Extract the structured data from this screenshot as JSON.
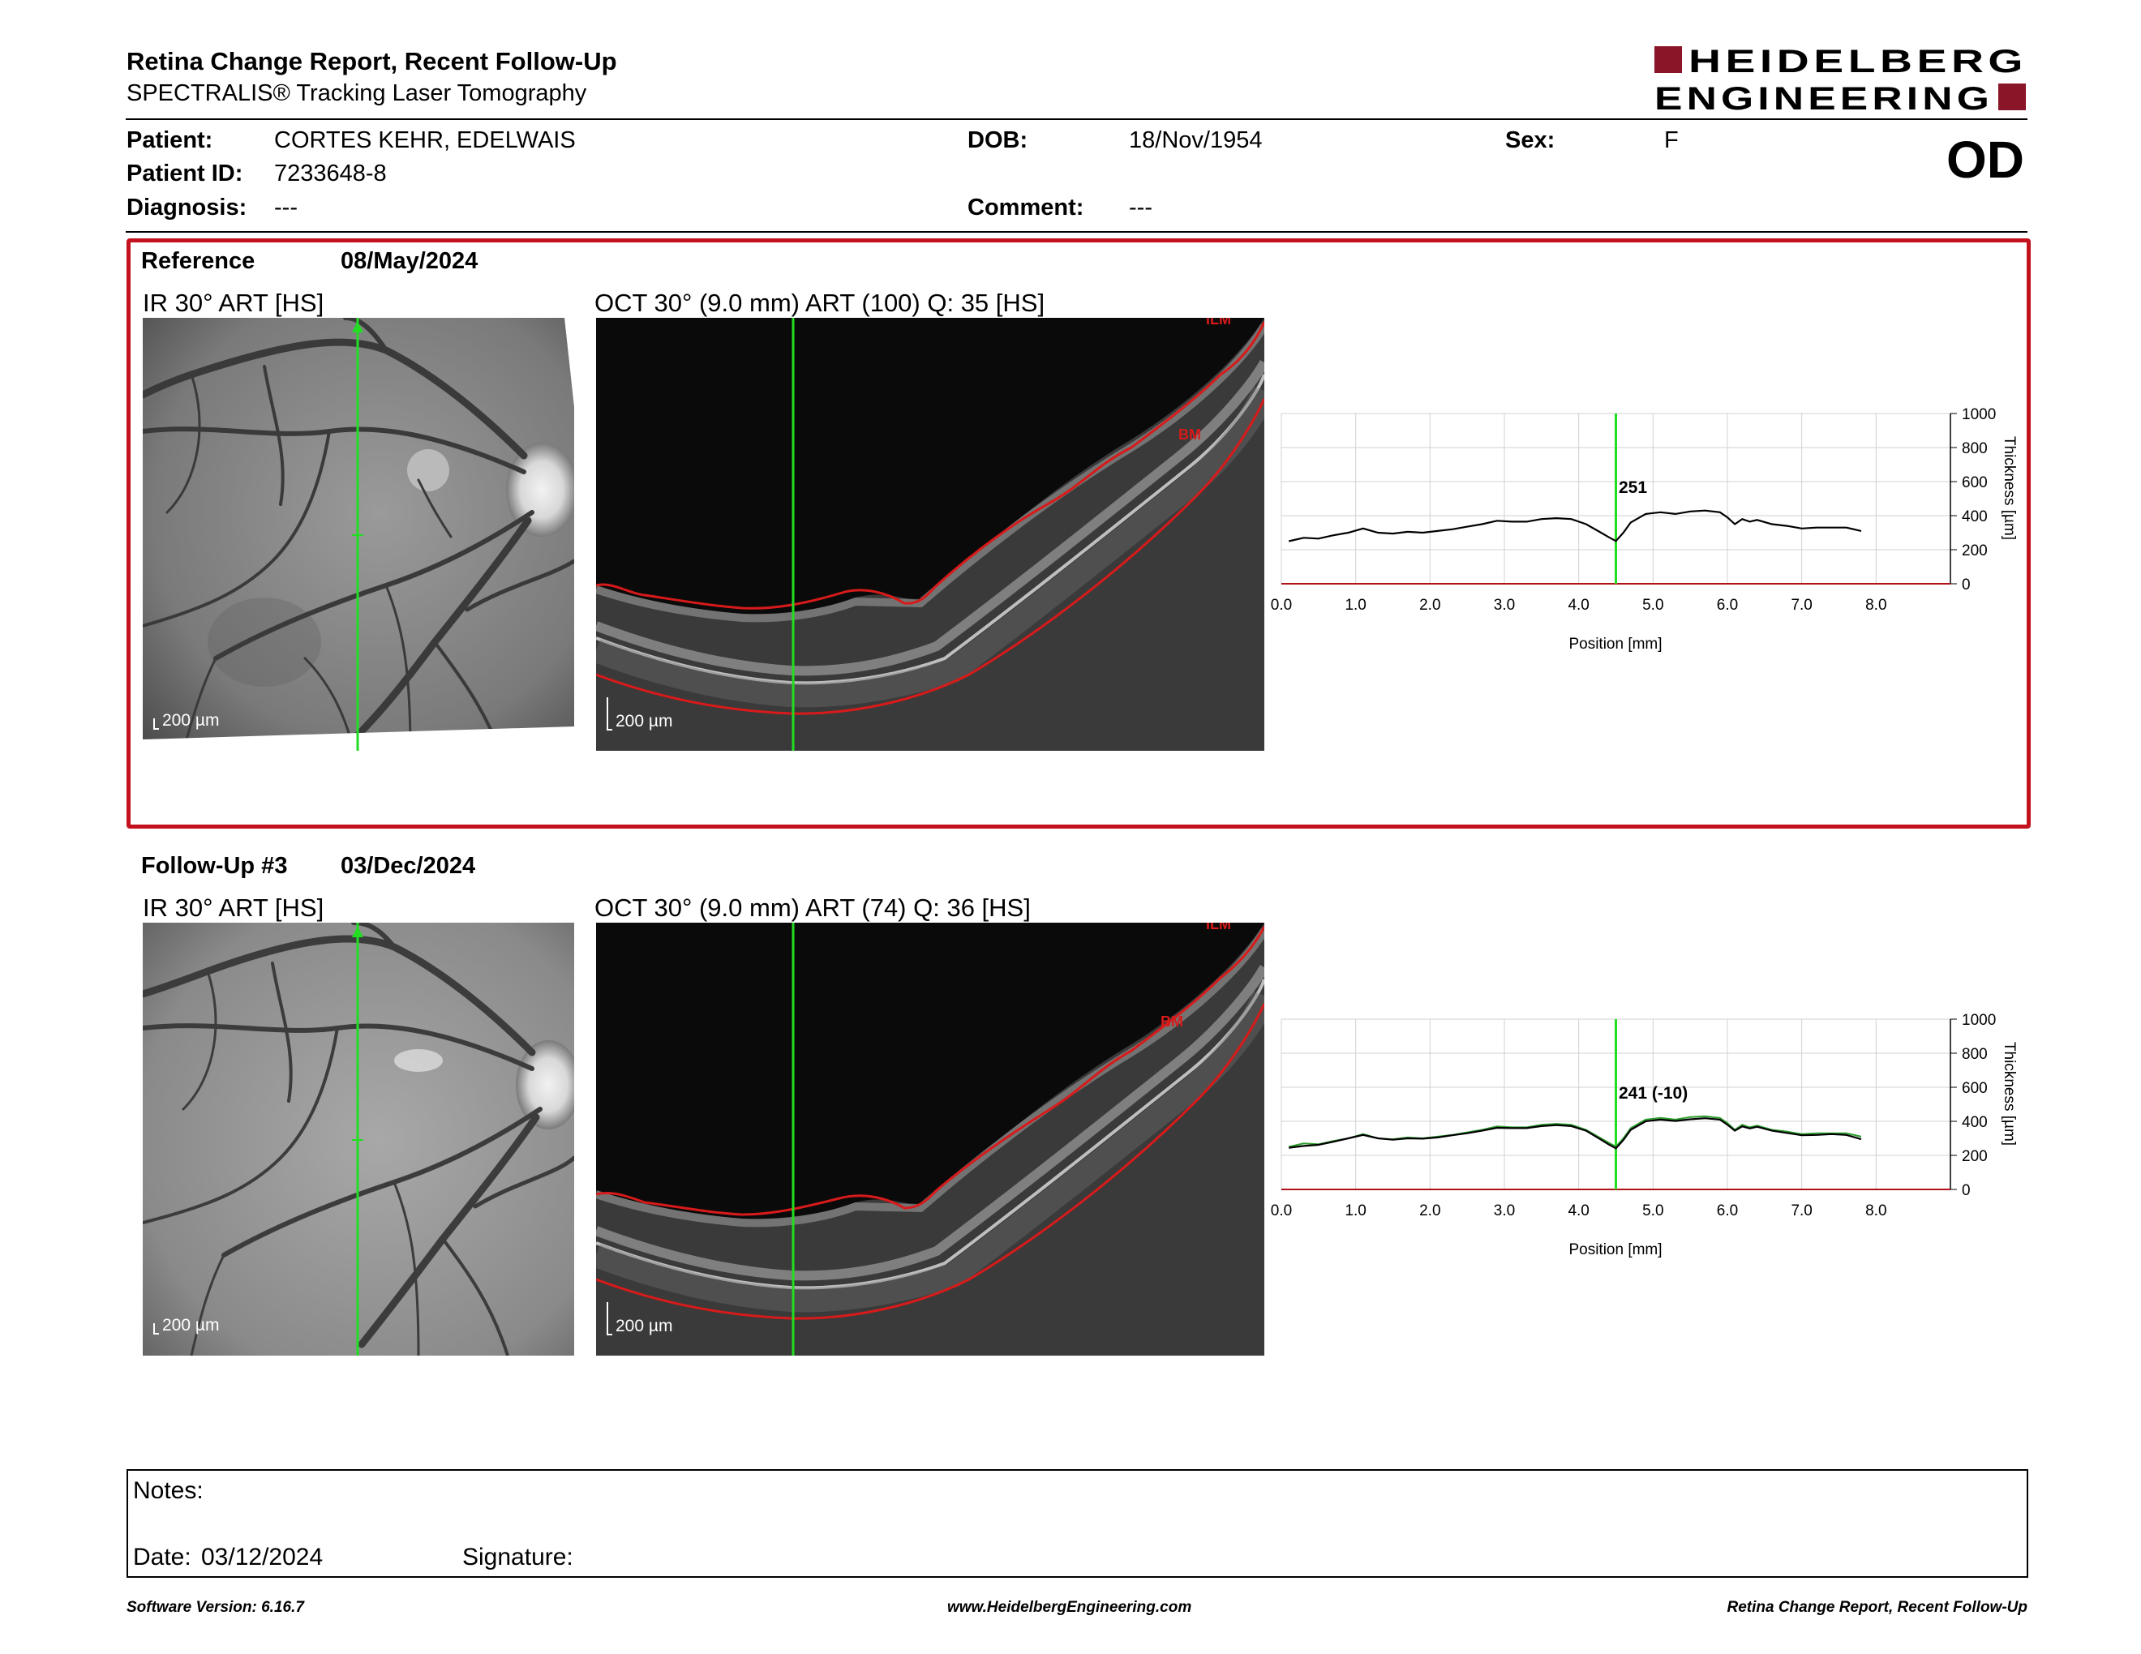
{
  "header": {
    "title": "Retina Change Report, Recent Follow-Up",
    "subtitle": "SPECTRALIS® Tracking Laser Tomography",
    "logo_line1": "HEIDELBERG",
    "logo_line2": "ENGINEERING",
    "eye": "OD"
  },
  "patient": {
    "patient_label": "Patient:",
    "patient_value": "CORTES KEHR, EDELWAIS",
    "dob_label": "DOB:",
    "dob_value": "18/Nov/1954",
    "sex_label": "Sex:",
    "sex_value": "F",
    "id_label": "Patient ID:",
    "id_value": "7233648-8",
    "diagnosis_label": "Diagnosis:",
    "diagnosis_value": "---",
    "comment_label": "Comment:",
    "comment_value": "---"
  },
  "reference": {
    "label": "Reference",
    "date": "08/May/2024",
    "ir_title": "IR 30° ART [HS]",
    "oct_title": "OCT 30° (9.0 mm) ART (100) Q: 35 [HS]",
    "scale_ir": "200 µm",
    "scale_oct": "200 µm",
    "layer_ilm": "ILM",
    "layer_bm": "BM",
    "marker_value": "251"
  },
  "followup": {
    "label": "Follow-Up #3",
    "date": "03/Dec/2024",
    "ir_title": "IR 30° ART [HS]",
    "oct_title": "OCT 30° (9.0 mm) ART (74) Q: 36 [HS]",
    "scale_ir": "200 µm",
    "scale_oct": "200 µm",
    "layer_ilm": "ILM",
    "layer_bm": "BM",
    "marker_value": "241 (-10)"
  },
  "chart_data": [
    {
      "type": "line",
      "xlabel": "Position [mm]",
      "ylabel": "Thickness [µm]",
      "xlim": [
        0,
        9
      ],
      "ylim": [
        0,
        1000
      ],
      "x_ticks": [
        "0.0",
        "1.0",
        "2.0",
        "3.0",
        "4.0",
        "5.0",
        "6.0",
        "7.0",
        "8.0"
      ],
      "y_ticks": [
        "0",
        "200",
        "400",
        "600",
        "800",
        "1000"
      ],
      "marker_x": 4.5,
      "marker_label": "251",
      "grid": true,
      "series": [
        {
          "color": "#000000",
          "x": [
            0.1,
            0.3,
            0.5,
            0.7,
            0.9,
            1.1,
            1.3,
            1.5,
            1.7,
            1.9,
            2.1,
            2.3,
            2.5,
            2.7,
            2.9,
            3.1,
            3.3,
            3.5,
            3.7,
            3.9,
            4.1,
            4.3,
            4.4,
            4.5,
            4.6,
            4.7,
            4.9,
            5.1,
            5.3,
            5.5,
            5.7,
            5.9,
            6.0,
            6.1,
            6.2,
            6.3,
            6.4,
            6.6,
            6.8,
            7.0,
            7.2,
            7.4,
            7.6,
            7.8
          ],
          "values": [
            250,
            270,
            265,
            285,
            300,
            325,
            300,
            295,
            305,
            300,
            310,
            320,
            335,
            350,
            370,
            365,
            365,
            380,
            385,
            380,
            350,
            300,
            275,
            251,
            300,
            360,
            410,
            420,
            410,
            425,
            430,
            420,
            390,
            350,
            380,
            365,
            375,
            350,
            340,
            325,
            330,
            330,
            330,
            310
          ]
        }
      ]
    },
    {
      "type": "line",
      "xlabel": "Position [mm]",
      "ylabel": "Thickness [µm]",
      "xlim": [
        0,
        9
      ],
      "ylim": [
        0,
        1000
      ],
      "x_ticks": [
        "0.0",
        "1.0",
        "2.0",
        "3.0",
        "4.0",
        "5.0",
        "6.0",
        "7.0",
        "8.0"
      ],
      "y_ticks": [
        "0",
        "200",
        "400",
        "600",
        "800",
        "1000"
      ],
      "marker_x": 4.5,
      "marker_label": "241 (-10)",
      "grid": true,
      "series": [
        {
          "color": "#2e9e2e",
          "x": [
            0.1,
            0.3,
            0.5,
            0.7,
            0.9,
            1.1,
            1.3,
            1.5,
            1.7,
            1.9,
            2.1,
            2.3,
            2.5,
            2.7,
            2.9,
            3.1,
            3.3,
            3.5,
            3.7,
            3.9,
            4.1,
            4.3,
            4.4,
            4.5,
            4.6,
            4.7,
            4.9,
            5.1,
            5.3,
            5.5,
            5.7,
            5.9,
            6.0,
            6.1,
            6.2,
            6.3,
            6.4,
            6.6,
            6.8,
            7.0,
            7.2,
            7.4,
            7.6,
            7.8
          ],
          "values": [
            250,
            270,
            265,
            285,
            300,
            325,
            300,
            295,
            305,
            300,
            310,
            320,
            335,
            350,
            370,
            365,
            365,
            380,
            385,
            380,
            350,
            300,
            275,
            251,
            300,
            360,
            410,
            420,
            410,
            425,
            430,
            420,
            390,
            350,
            380,
            365,
            375,
            350,
            340,
            325,
            330,
            330,
            330,
            310
          ]
        },
        {
          "color": "#000000",
          "x": [
            0.1,
            0.3,
            0.5,
            0.7,
            0.9,
            1.1,
            1.3,
            1.5,
            1.7,
            1.9,
            2.1,
            2.3,
            2.5,
            2.7,
            2.9,
            3.1,
            3.3,
            3.5,
            3.7,
            3.9,
            4.1,
            4.3,
            4.4,
            4.5,
            4.6,
            4.7,
            4.9,
            5.1,
            5.3,
            5.5,
            5.7,
            5.9,
            6.0,
            6.1,
            6.2,
            6.3,
            6.4,
            6.6,
            6.8,
            7.0,
            7.2,
            7.4,
            7.6,
            7.8
          ],
          "values": [
            245,
            255,
            262,
            280,
            300,
            320,
            300,
            292,
            300,
            298,
            305,
            318,
            330,
            345,
            362,
            360,
            360,
            372,
            378,
            372,
            345,
            292,
            265,
            241,
            290,
            350,
            400,
            410,
            402,
            412,
            418,
            410,
            380,
            345,
            370,
            358,
            368,
            345,
            332,
            318,
            320,
            325,
            320,
            295
          ]
        }
      ]
    }
  ],
  "notes": {
    "notes_label": "Notes:",
    "date_label": "Date:",
    "date_value": "03/12/2024",
    "signature_label": "Signature:"
  },
  "footer": {
    "software": "Software Version: 6.16.7",
    "website": "www.HeidelbergEngineering.com",
    "report_name": "Retina Change Report, Recent Follow-Up"
  },
  "colors": {
    "brand_red": "#8b1528",
    "frame_red": "#c3121e",
    "marker_green": "#22dd22",
    "segmentation_red": "#d81a1a"
  }
}
